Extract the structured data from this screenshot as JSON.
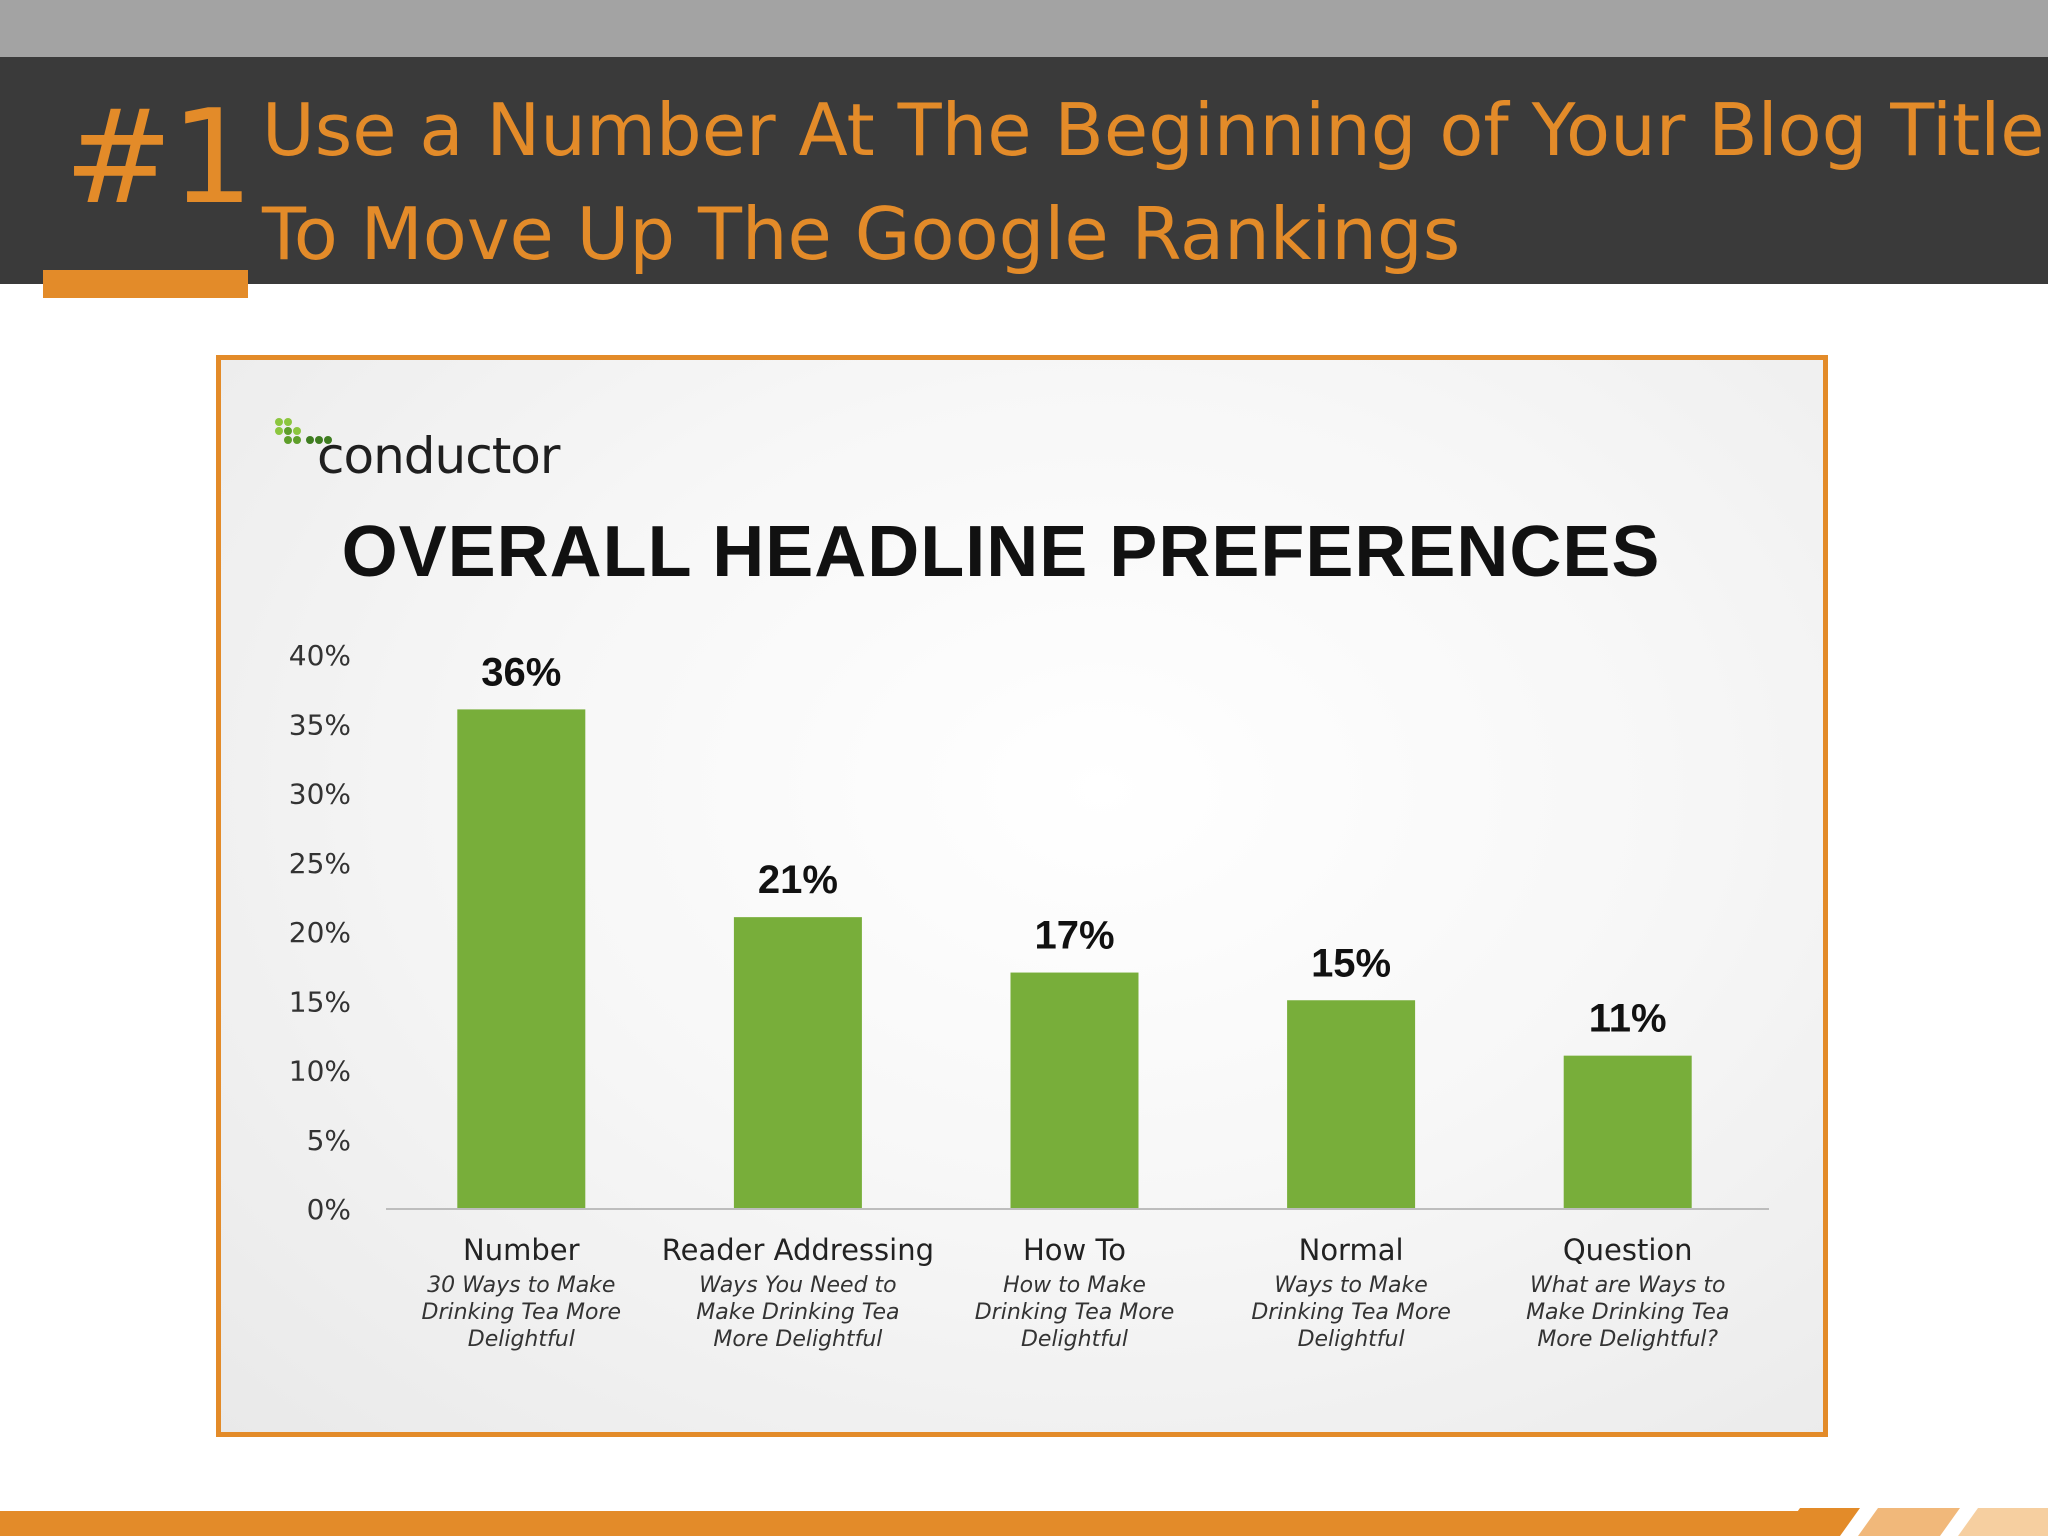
{
  "slide": {
    "number": "#1",
    "title_line1": "Use a Number At The Beginning of Your Blog Title",
    "title_line2": "To Move Up The Google Rankings"
  },
  "colors": {
    "accent": "#e38b29",
    "header_background": "#3a3a3a",
    "top_strip": "#a3a3a3",
    "bar": "#78ae3a"
  },
  "logo": {
    "text": "conductor",
    "icon": "conductor-dots-logo"
  },
  "chart_data": {
    "type": "bar",
    "title": "OVERALL HEADLINE PREFERENCES",
    "categories": [
      "Number",
      "Reader Addressing",
      "How To",
      "Normal",
      "Question"
    ],
    "category_examples": [
      [
        "30 Ways to Make",
        "Drinking Tea More",
        "Delightful"
      ],
      [
        "Ways You Need to",
        "Make Drinking Tea",
        "More Delightful"
      ],
      [
        "How to Make",
        "Drinking Tea More",
        "Delightful"
      ],
      [
        "Ways to Make",
        "Drinking Tea More",
        "Delightful"
      ],
      [
        "What are Ways to",
        "Make Drinking Tea",
        "More Delightful?"
      ]
    ],
    "values": [
      36,
      21,
      17,
      15,
      11
    ],
    "value_labels": [
      "36%",
      "21%",
      "17%",
      "15%",
      "11%"
    ],
    "ylim": [
      0,
      40
    ],
    "yticks": [
      0,
      5,
      10,
      15,
      20,
      25,
      30,
      35,
      40
    ],
    "ytick_labels": [
      "0%",
      "5%",
      "10%",
      "15%",
      "20%",
      "25%",
      "30%",
      "35%",
      "40%"
    ],
    "grid": false,
    "legend": "none"
  }
}
